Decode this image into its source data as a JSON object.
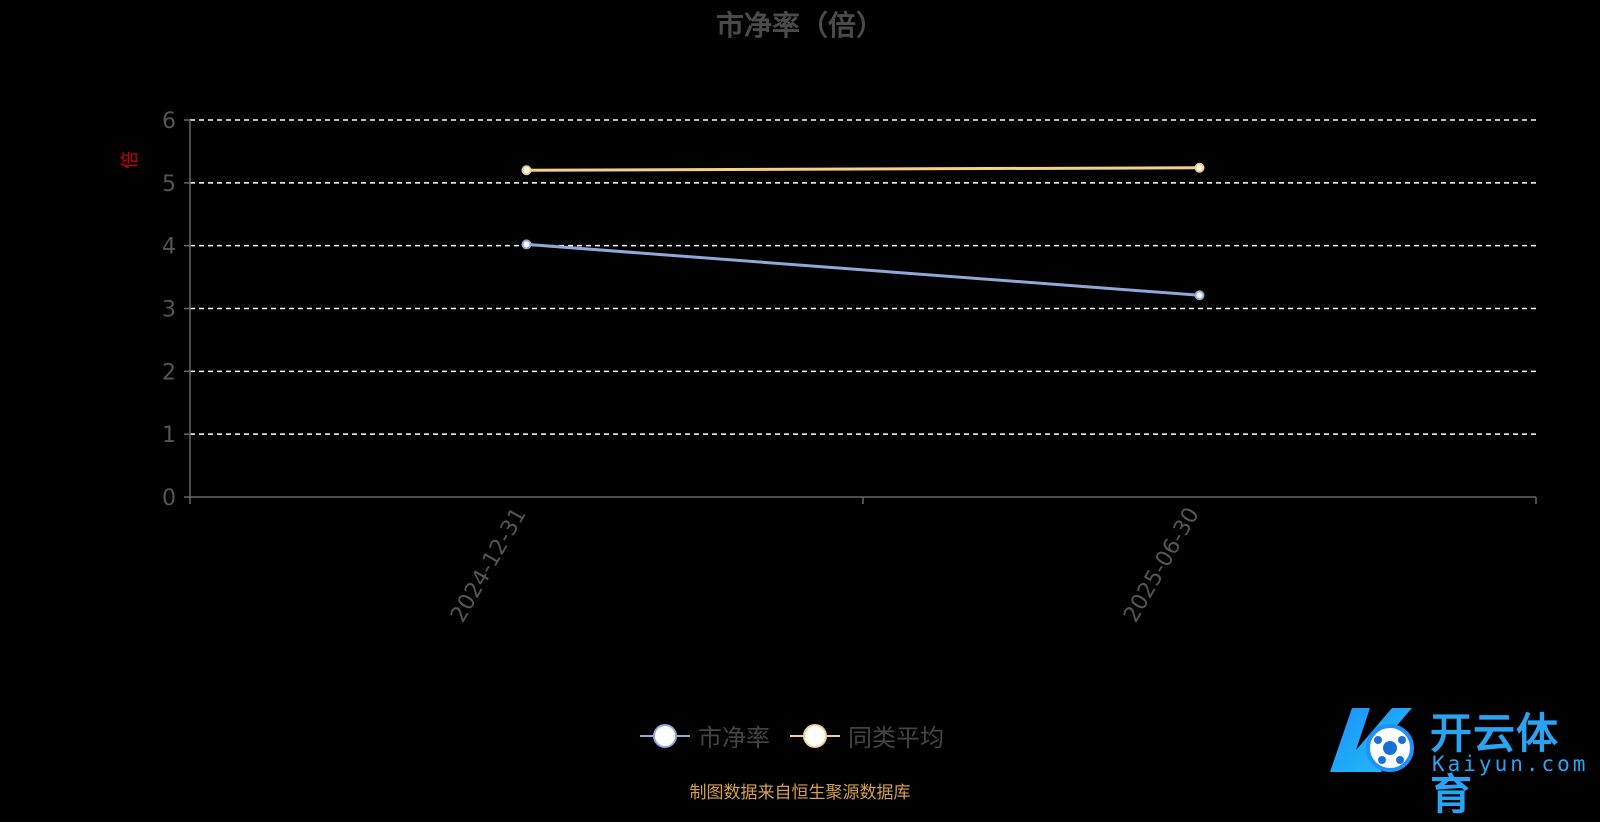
{
  "chart_data": {
    "type": "line",
    "title": "市净率（倍）",
    "ylabel": "倍",
    "ylim": [
      0,
      6
    ],
    "yticks": [
      0,
      1,
      2,
      3,
      4,
      5,
      6
    ],
    "categories": [
      "2024-12-31",
      "2025-06-30"
    ],
    "grid": true,
    "legend_position": "bottom",
    "series": [
      {
        "name": "市净率",
        "values": [
          4.02,
          3.21
        ],
        "color": "#8fa8d8"
      },
      {
        "name": "同类平均",
        "values": [
          5.2,
          5.24
        ],
        "color": "#f5d08c"
      }
    ]
  },
  "source_note": "制图数据来自恒生聚源数据库",
  "watermark": {
    "cn": "开云体育",
    "en": "Kaiyun.com"
  },
  "colors": {
    "background": "#000000",
    "grid": "#ffffff",
    "axis": "#666666",
    "ylabel": "#cc0000"
  }
}
